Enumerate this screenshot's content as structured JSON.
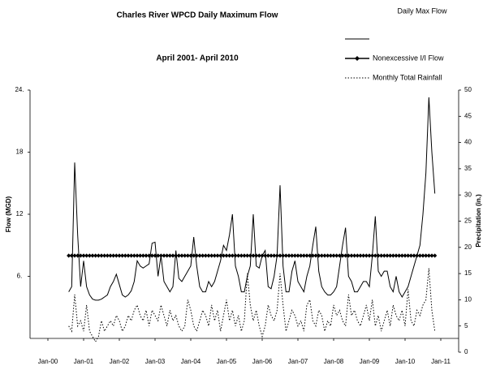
{
  "chart_data": {
    "type": "line",
    "title": "Charles River WPCD Daily Maximum Flow",
    "subtitle": "April 2001- April 2010",
    "ylabel": "Flow (MGD)",
    "y2label": "Precipitation (in.)",
    "x": [
      "2000-08",
      "2000-09",
      "2000-10",
      "2000-11",
      "2000-12",
      "2001-01",
      "2001-02",
      "2001-03",
      "2001-04",
      "2001-05",
      "2001-06",
      "2001-07",
      "2001-08",
      "2001-09",
      "2001-10",
      "2001-11",
      "2001-12",
      "2002-01",
      "2002-02",
      "2002-03",
      "2002-04",
      "2002-05",
      "2002-06",
      "2002-07",
      "2002-08",
      "2002-09",
      "2002-10",
      "2002-11",
      "2002-12",
      "2003-01",
      "2003-02",
      "2003-03",
      "2003-04",
      "2003-05",
      "2003-06",
      "2003-07",
      "2003-08",
      "2003-09",
      "2003-10",
      "2003-11",
      "2003-12",
      "2004-01",
      "2004-02",
      "2004-03",
      "2004-04",
      "2004-05",
      "2004-06",
      "2004-07",
      "2004-08",
      "2004-09",
      "2004-10",
      "2004-11",
      "2004-12",
      "2005-01",
      "2005-02",
      "2005-03",
      "2005-04",
      "2005-05",
      "2005-06",
      "2005-07",
      "2005-08",
      "2005-09",
      "2005-10",
      "2005-11",
      "2005-12",
      "2006-01",
      "2006-02",
      "2006-03",
      "2006-04",
      "2006-05",
      "2006-06",
      "2006-07",
      "2006-08",
      "2006-09",
      "2006-10",
      "2006-11",
      "2006-12",
      "2007-01",
      "2007-02",
      "2007-03",
      "2007-04",
      "2007-05",
      "2007-06",
      "2007-07",
      "2007-08",
      "2007-09",
      "2007-10",
      "2007-11",
      "2007-12",
      "2008-01",
      "2008-02",
      "2008-03",
      "2008-04",
      "2008-05",
      "2008-06",
      "2008-07",
      "2008-08",
      "2008-09",
      "2008-10",
      "2008-11",
      "2008-12",
      "2009-01",
      "2009-02",
      "2009-03",
      "2009-04",
      "2009-05",
      "2009-06",
      "2009-07",
      "2009-08",
      "2009-09",
      "2009-10",
      "2009-11",
      "2009-12",
      "2010-01",
      "2010-02",
      "2010-03",
      "2010-04",
      "2010-05",
      "2010-06",
      "2010-07",
      "2010-08",
      "2010-09",
      "2010-10",
      "2010-11"
    ],
    "series": [
      {
        "name": "Daily Max Flow",
        "color": "#000000",
        "style": "solid",
        "values": [
          4.5,
          5,
          17,
          10,
          5,
          7.5,
          5,
          4.2,
          3.8,
          3.7,
          3.7,
          3.8,
          4,
          4.2,
          5,
          5.5,
          6.2,
          5.2,
          4.2,
          4,
          4.2,
          4.6,
          5.5,
          7.5,
          7,
          6.8,
          7,
          7.2,
          9.2,
          9.3,
          6,
          8,
          5.5,
          5,
          4.5,
          5,
          8.5,
          5.8,
          5.5,
          6,
          6.5,
          7,
          9.8,
          7,
          5,
          4.5,
          4.5,
          5.5,
          5,
          5.5,
          6.5,
          7.5,
          9,
          8.5,
          10,
          12,
          7,
          6,
          4.5,
          4.5,
          6,
          7,
          12,
          7,
          6.8,
          8,
          8.5,
          5,
          4.8,
          6,
          8,
          14.8,
          7,
          4.5,
          4.5,
          6.5,
          7.5,
          5.5,
          5,
          4.5,
          6,
          7,
          9,
          10.8,
          6.5,
          5,
          4.5,
          4.2,
          4.2,
          4.5,
          5,
          7,
          9,
          10.7,
          6,
          5.5,
          4.5,
          4.5,
          5,
          5.5,
          5.5,
          5,
          8,
          11.8,
          6.5,
          6,
          6.5,
          6.5,
          5,
          4.5,
          6,
          4.5,
          4,
          4.5,
          5,
          6,
          7,
          8,
          9,
          12,
          16,
          23.3,
          18,
          14
        ]
      },
      {
        "name": "Nonexcessive I/I Flow",
        "color": "#000000",
        "style": "diamond",
        "values": [
          8,
          8,
          8,
          8,
          8,
          8,
          8,
          8,
          8,
          8,
          8,
          8,
          8,
          8,
          8,
          8,
          8,
          8,
          8,
          8,
          8,
          8,
          8,
          8,
          8,
          8,
          8,
          8,
          8,
          8,
          8,
          8,
          8,
          8,
          8,
          8,
          8,
          8,
          8,
          8,
          8,
          8,
          8,
          8,
          8,
          8,
          8,
          8,
          8,
          8,
          8,
          8,
          8,
          8,
          8,
          8,
          8,
          8,
          8,
          8,
          8,
          8,
          8,
          8,
          8,
          8,
          8,
          8,
          8,
          8,
          8,
          8,
          8,
          8,
          8,
          8,
          8,
          8,
          8,
          8,
          8,
          8,
          8,
          8,
          8,
          8,
          8,
          8,
          8,
          8,
          8,
          8,
          8,
          8,
          8,
          8,
          8,
          8,
          8,
          8,
          8,
          8,
          8,
          8,
          8,
          8,
          8,
          8,
          8,
          8,
          8,
          8,
          8,
          8,
          8,
          8,
          8,
          8,
          8,
          8,
          8,
          8,
          8,
          8
        ]
      },
      {
        "name": "Monthly Total Rainfall",
        "color": "#000000",
        "style": "dotted",
        "axis": "y2",
        "values": [
          5,
          4,
          11,
          5,
          6,
          4,
          9,
          4,
          3,
          2,
          3,
          6,
          4,
          5,
          6,
          5,
          7,
          6,
          4,
          5,
          7,
          6,
          8,
          9,
          7,
          6,
          8,
          5,
          8,
          7,
          6,
          9,
          7,
          5,
          8,
          6,
          7,
          5,
          4,
          5,
          10,
          8,
          5,
          4,
          6,
          8,
          7,
          5,
          9,
          6,
          8,
          4,
          7,
          10,
          6,
          8,
          5,
          7,
          4,
          6,
          15,
          9,
          6,
          8,
          5,
          3,
          5,
          9,
          7,
          6,
          8,
          15,
          9,
          4,
          6,
          8,
          7,
          5,
          6,
          4,
          9,
          10,
          6,
          5,
          8,
          7,
          4,
          6,
          5,
          9,
          7,
          8,
          6,
          5,
          11,
          7,
          8,
          6,
          5,
          7,
          9,
          6,
          10,
          5,
          7,
          4,
          6,
          8,
          5,
          9,
          7,
          6,
          8,
          5,
          12,
          6,
          5,
          8,
          7,
          9,
          10,
          16,
          8,
          4
        ]
      }
    ],
    "xlim": [
      "1999-07",
      "2011-07"
    ],
    "xticks": [
      {
        "value": "2000-01",
        "label": "Jan-00"
      },
      {
        "value": "2001-01",
        "label": "Jan-01"
      },
      {
        "value": "2002-01",
        "label": "Jan-02"
      },
      {
        "value": "2003-01",
        "label": "Jan-03"
      },
      {
        "value": "2004-01",
        "label": "Jan-04"
      },
      {
        "value": "2005-01",
        "label": "Jan-05"
      },
      {
        "value": "2006-01",
        "label": "Jan-06"
      },
      {
        "value": "2007-01",
        "label": "Jan-07"
      },
      {
        "value": "2008-01",
        "label": "Jan-08"
      },
      {
        "value": "2009-01",
        "label": "Jan-09"
      },
      {
        "value": "2010-01",
        "label": "Jan-10"
      },
      {
        "value": "2011-01",
        "label": "Jan-11"
      }
    ],
    "ylim": [
      0,
      24
    ],
    "yticks": [
      {
        "value": 6,
        "label": "6."
      },
      12,
      18,
      {
        "value": 24,
        "label": "24."
      }
    ],
    "y2lim": [
      0,
      50
    ],
    "y2ticks": [
      0,
      5,
      10,
      15,
      20,
      25,
      30,
      35,
      40,
      45,
      50
    ]
  }
}
